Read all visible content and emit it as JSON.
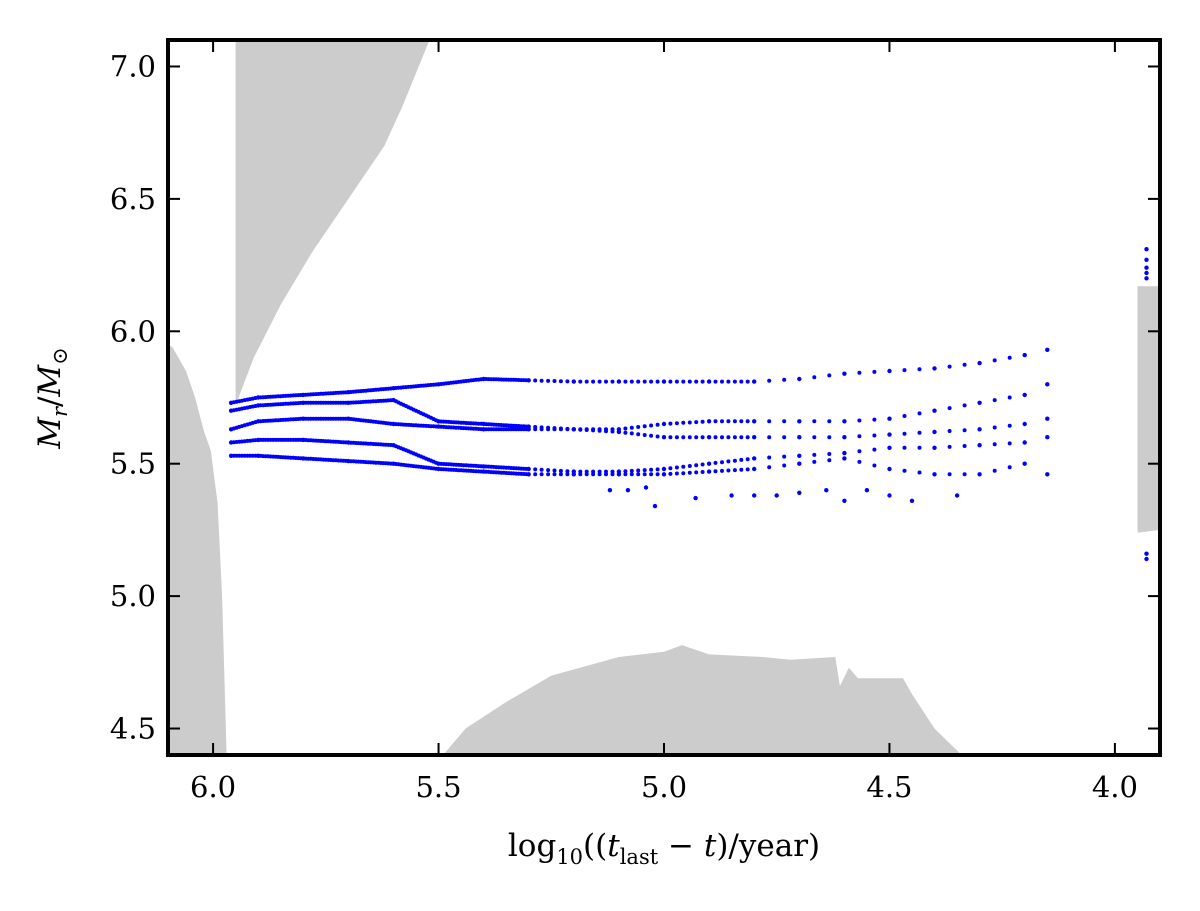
{
  "chart_data": {
    "type": "scatter",
    "title": "",
    "xlabel": {
      "prefix": "log",
      "base": "10",
      "open": "((",
      "var": "t",
      "var_sub": "last",
      "minus": " − ",
      "var2": "t",
      "suffix": ")/year)"
    },
    "ylabel": {
      "num": "M",
      "num_sub": "r",
      "slash": "/",
      "den": "M",
      "den_sub": "⊙"
    },
    "xlim": [
      6.1,
      3.9
    ],
    "ylim": [
      4.4,
      7.1
    ],
    "x_ticks": [
      {
        "value": 6.0,
        "label": "6.0"
      },
      {
        "value": 5.5,
        "label": "5.5"
      },
      {
        "value": 5.0,
        "label": "5.0"
      },
      {
        "value": 4.5,
        "label": "4.5"
      },
      {
        "value": 4.0,
        "label": "4.0"
      }
    ],
    "y_ticks": [
      {
        "value": 4.5,
        "label": "4.5"
      },
      {
        "value": 5.0,
        "label": "5.0"
      },
      {
        "value": 5.5,
        "label": "5.5"
      },
      {
        "value": 6.0,
        "label": "6.0"
      },
      {
        "value": 6.5,
        "label": "6.5"
      },
      {
        "value": 7.0,
        "label": "7.0"
      }
    ],
    "colors": {
      "region": "#cccccc",
      "points": "#0000ff",
      "axes": "#000000"
    },
    "shaded_regions": [
      {
        "name": "left-convective-zone",
        "points": [
          [
            6.1,
            4.4
          ],
          [
            6.1,
            5.95
          ],
          [
            6.09,
            5.94
          ],
          [
            6.06,
            5.85
          ],
          [
            6.04,
            5.75
          ],
          [
            6.02,
            5.62
          ],
          [
            6.005,
            5.55
          ],
          [
            5.99,
            5.35
          ],
          [
            5.98,
            5.0
          ],
          [
            5.97,
            4.4
          ]
        ]
      },
      {
        "name": "upper-convective-zone",
        "points": [
          [
            5.95,
            7.1
          ],
          [
            5.95,
            5.72
          ],
          [
            5.91,
            5.9
          ],
          [
            5.85,
            6.1
          ],
          [
            5.78,
            6.3
          ],
          [
            5.7,
            6.5
          ],
          [
            5.62,
            6.7
          ],
          [
            5.58,
            6.85
          ],
          [
            5.52,
            7.1
          ]
        ]
      },
      {
        "name": "bottom-convective-zone",
        "points": [
          [
            5.49,
            4.4
          ],
          [
            5.44,
            4.5
          ],
          [
            5.35,
            4.6
          ],
          [
            5.25,
            4.7
          ],
          [
            5.1,
            4.77
          ],
          [
            5.0,
            4.79
          ],
          [
            4.96,
            4.815
          ],
          [
            4.9,
            4.78
          ],
          [
            4.78,
            4.77
          ],
          [
            4.72,
            4.76
          ],
          [
            4.62,
            4.77
          ],
          [
            4.61,
            4.66
          ],
          [
            4.59,
            4.73
          ],
          [
            4.57,
            4.69
          ],
          [
            4.47,
            4.69
          ],
          [
            4.45,
            4.63
          ],
          [
            4.4,
            4.5
          ],
          [
            4.34,
            4.4
          ]
        ]
      },
      {
        "name": "right-convective-zone",
        "points": [
          [
            3.9,
            6.17
          ],
          [
            3.95,
            6.17
          ],
          [
            3.95,
            5.24
          ],
          [
            3.9,
            5.25
          ]
        ]
      }
    ],
    "series": [
      {
        "name": "track-1",
        "x": [
          5.96,
          5.9,
          5.8,
          5.7,
          5.6,
          5.5,
          5.4,
          5.3,
          5.2,
          5.1,
          5.0,
          4.9,
          4.8,
          4.7,
          4.6,
          4.5,
          4.4,
          4.3,
          4.2,
          4.15
        ],
        "y": [
          5.73,
          5.75,
          5.76,
          5.77,
          5.785,
          5.8,
          5.82,
          5.815,
          5.81,
          5.81,
          5.81,
          5.81,
          5.81,
          5.82,
          5.84,
          5.85,
          5.86,
          5.88,
          5.91,
          5.93
        ]
      },
      {
        "name": "track-2",
        "x": [
          5.96,
          5.9,
          5.8,
          5.7,
          5.6,
          5.5,
          5.4,
          5.3,
          5.2,
          5.1,
          5.0,
          4.9,
          4.8,
          4.7,
          4.6,
          4.5,
          4.4,
          4.3,
          4.2,
          4.15
        ],
        "y": [
          5.7,
          5.72,
          5.73,
          5.73,
          5.74,
          5.66,
          5.65,
          5.64,
          5.63,
          5.63,
          5.65,
          5.66,
          5.66,
          5.66,
          5.66,
          5.67,
          5.7,
          5.73,
          5.76,
          5.8
        ]
      },
      {
        "name": "track-3",
        "x": [
          5.96,
          5.9,
          5.8,
          5.7,
          5.6,
          5.5,
          5.4,
          5.3,
          5.2,
          5.1,
          5.0,
          4.9,
          4.8,
          4.7,
          4.6,
          4.5,
          4.4,
          4.3,
          4.2,
          4.15
        ],
        "y": [
          5.63,
          5.66,
          5.67,
          5.67,
          5.65,
          5.64,
          5.63,
          5.63,
          5.63,
          5.62,
          5.6,
          5.6,
          5.6,
          5.6,
          5.6,
          5.61,
          5.62,
          5.63,
          5.65,
          5.67
        ]
      },
      {
        "name": "track-4",
        "x": [
          5.96,
          5.9,
          5.8,
          5.7,
          5.6,
          5.5,
          5.4,
          5.3,
          5.2,
          5.1,
          5.0,
          4.9,
          4.8,
          4.7,
          4.6,
          4.5,
          4.4,
          4.3,
          4.2,
          4.15
        ],
        "y": [
          5.58,
          5.59,
          5.59,
          5.58,
          5.57,
          5.5,
          5.49,
          5.48,
          5.47,
          5.47,
          5.48,
          5.5,
          5.52,
          5.53,
          5.54,
          5.56,
          5.56,
          5.57,
          5.58,
          5.6
        ]
      },
      {
        "name": "track-5",
        "x": [
          5.96,
          5.9,
          5.8,
          5.7,
          5.6,
          5.5,
          5.4,
          5.3,
          5.2,
          5.1,
          5.0,
          4.9,
          4.8,
          4.7,
          4.6,
          4.5,
          4.4,
          4.3,
          4.2,
          4.15
        ],
        "y": [
          5.53,
          5.53,
          5.52,
          5.51,
          5.5,
          5.48,
          5.47,
          5.46,
          5.46,
          5.46,
          5.46,
          5.47,
          5.48,
          5.5,
          5.52,
          5.48,
          5.46,
          5.46,
          5.5,
          5.46
        ]
      },
      {
        "name": "track-6",
        "x": [
          5.12,
          5.08,
          5.04,
          5.02,
          4.93,
          4.85,
          4.8,
          4.75,
          4.7,
          4.64,
          4.6,
          4.55,
          4.5,
          4.45,
          4.35
        ],
        "y": [
          5.4,
          5.4,
          5.41,
          5.34,
          5.37,
          5.38,
          5.38,
          5.38,
          5.39,
          5.4,
          5.36,
          5.4,
          5.38,
          5.36,
          5.38
        ]
      },
      {
        "name": "late-points",
        "x": [
          3.93,
          3.93,
          3.93,
          3.93,
          3.93,
          3.93,
          3.93
        ],
        "y": [
          6.31,
          6.27,
          6.24,
          6.22,
          6.2,
          5.16,
          5.14
        ]
      }
    ]
  }
}
